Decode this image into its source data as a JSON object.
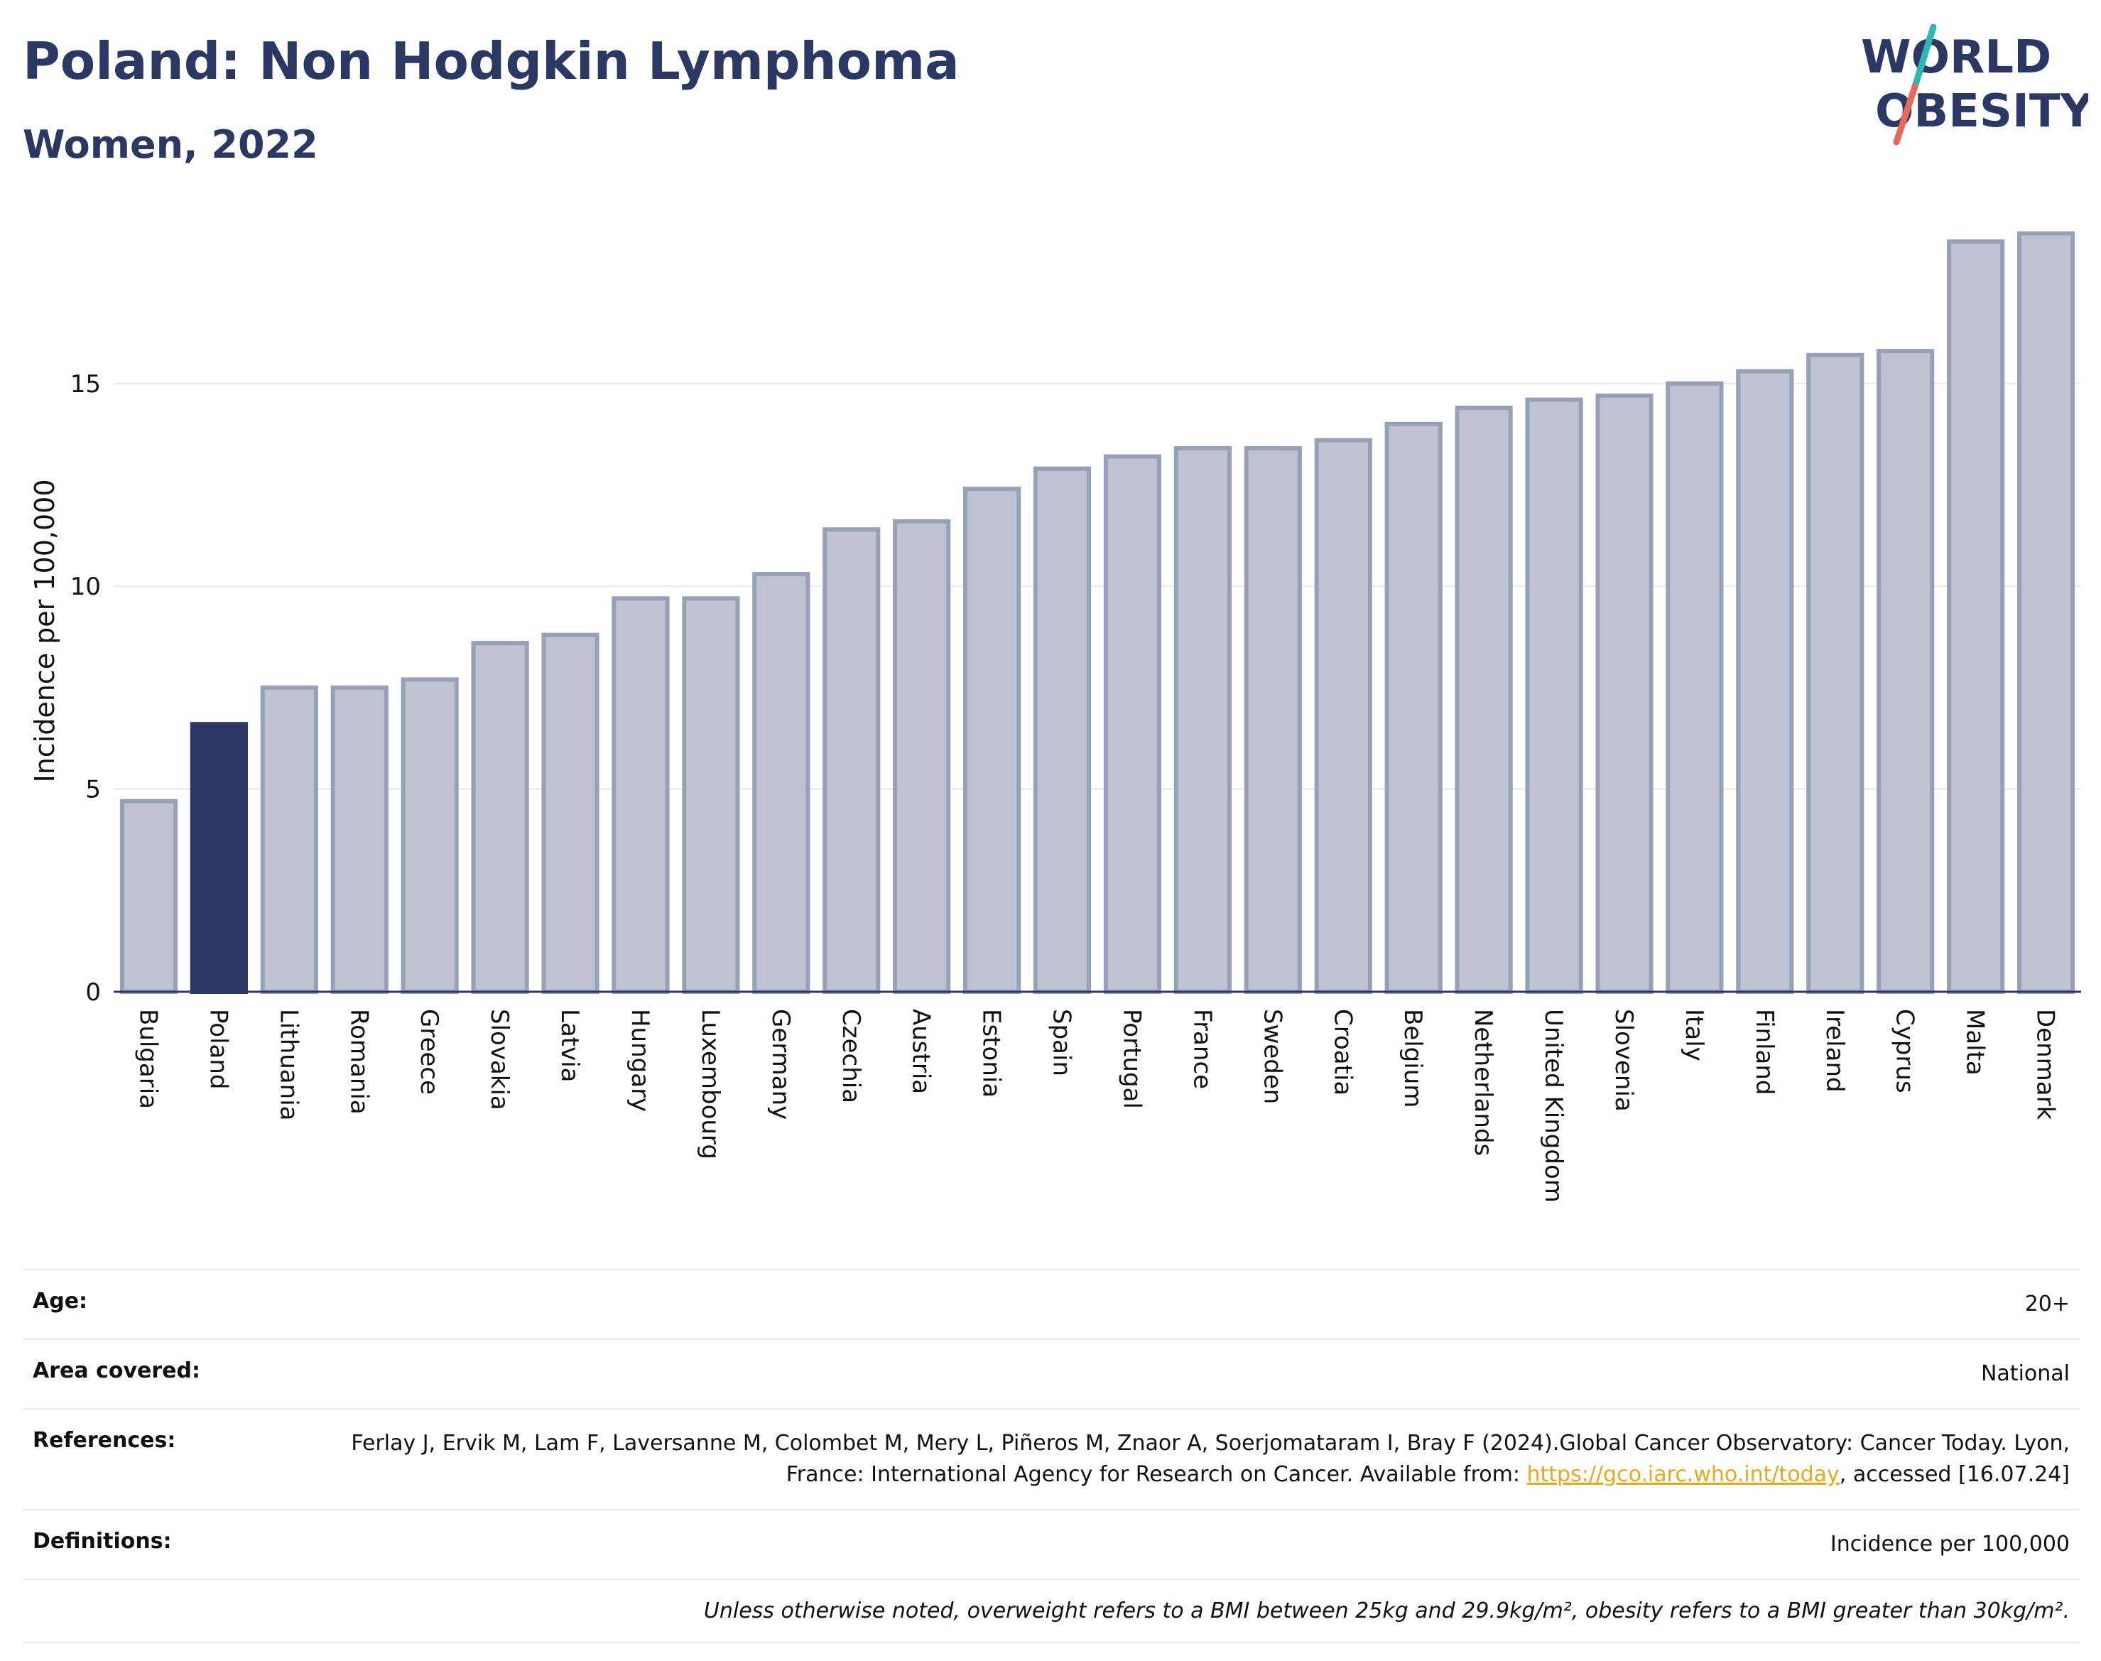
{
  "header": {
    "title": "Poland: Non Hodgkin Lymphoma",
    "subtitle": "Women, 2022"
  },
  "logo": {
    "line1": "WORLD",
    "line2": "OBESITY",
    "colors": {
      "text": "#2b3863",
      "slash_top": "#2bb7b3",
      "slash_bottom": "#e8685a"
    }
  },
  "colors": {
    "bar_default": "#bfc3d1",
    "bar_border": "#98a0b7",
    "bar_highlight": "#2b3863",
    "grid": "#e6e8ee",
    "axis": "#2b3863"
  },
  "chart_data": {
    "type": "bar",
    "categories": [
      "Bulgaria",
      "Poland",
      "Lithuania",
      "Romania",
      "Greece",
      "Slovakia",
      "Latvia",
      "Hungary",
      "Luxembourg",
      "Germany",
      "Czechia",
      "Austria",
      "Estonia",
      "Spain",
      "Portugal",
      "France",
      "Sweden",
      "Croatia",
      "Belgium",
      "Netherlands",
      "United Kingdom",
      "Slovenia",
      "Italy",
      "Finland",
      "Ireland",
      "Cyprus",
      "Malta",
      "Denmark"
    ],
    "values": [
      4.7,
      6.6,
      7.5,
      7.5,
      7.7,
      8.6,
      8.8,
      9.7,
      9.7,
      10.3,
      11.4,
      11.6,
      12.4,
      12.9,
      13.2,
      13.4,
      13.4,
      13.6,
      14.0,
      14.4,
      14.6,
      14.7,
      15.0,
      15.3,
      15.7,
      15.8,
      18.5,
      18.7
    ],
    "highlight": "Poland",
    "xlabel": "",
    "ylabel": "Incidence per 100,000",
    "ylim": [
      0,
      19.2
    ],
    "yticks": [
      0,
      5,
      10,
      15
    ],
    "grid": true
  },
  "info": {
    "age_label": "Age:",
    "age_value": "20+",
    "area_label": "Area covered:",
    "area_value": "National",
    "references_label": "References:",
    "references_text_1": "Ferlay J, Ervik M, Lam F, Laversanne M, Colombet M, Mery L, Piñeros M, Znaor A, Soerjomataram I, Bray F (2024).Global Cancer Observatory: Cancer Today. Lyon, France: International Agency for Research on Cancer. Available from: ",
    "references_link": "https://gco.iarc.who.int/today",
    "references_text_2": ", accessed [16.07.24]",
    "definitions_label": "Definitions:",
    "definitions_value": "Incidence per 100,000",
    "note": "Unless otherwise noted, overweight refers to a BMI between 25kg and 29.9kg/m², obesity refers to a BMI greater than 30kg/m²."
  }
}
